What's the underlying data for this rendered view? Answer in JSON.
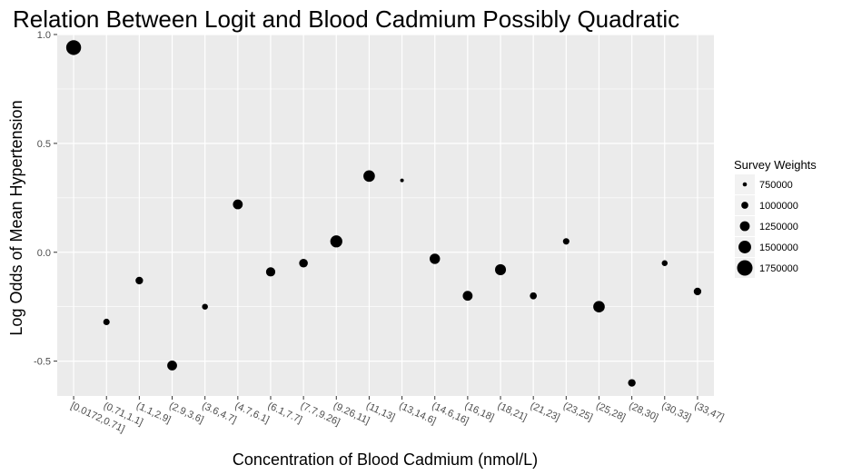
{
  "chart_data": {
    "type": "scatter",
    "title": "Relation Between Logit and Blood Cadmium Possibly Quadratic",
    "xlabel": "Concentration of Blood Cadmium (nmol/L)",
    "ylabel": "Log Odds of Mean Hypertension",
    "ylim": [
      -0.66,
      1.0
    ],
    "yticks": [
      "-0.5",
      "0.0",
      "0.5",
      "1.0"
    ],
    "ytick_values": [
      -0.5,
      0.0,
      0.5,
      1.0
    ],
    "grid": true,
    "legend_placement": "right",
    "legend": {
      "title": "Survey Weights",
      "labels": [
        "750000",
        "1000000",
        "1250000",
        "1500000",
        "1750000"
      ],
      "values": [
        750000,
        1000000,
        1250000,
        1500000,
        1750000
      ]
    },
    "categories": [
      "[0.0172,0.71]",
      "(0.71,1.1]",
      "(1.1,2.9]",
      "(2.9,3.6]",
      "(3.6,4.7]",
      "(4.7,6.1]",
      "(6.1,7.7]",
      "(7.7,9.26]",
      "(9.26,11]",
      "(11,13]",
      "(13,14.6]",
      "(14.6,16]",
      "(16,18]",
      "(18,21]",
      "(21,23]",
      "(23,25]",
      "(25,28]",
      "(28,30]",
      "(30,33]",
      "(33,47]"
    ],
    "y": [
      0.94,
      -0.32,
      -0.13,
      -0.52,
      -0.25,
      0.22,
      -0.09,
      -0.05,
      0.05,
      0.35,
      0.33,
      -0.03,
      -0.2,
      -0.08,
      -0.2,
      0.05,
      -0.25,
      -0.6,
      -0.05,
      -0.18
    ],
    "weights": [
      1700000,
      950000,
      1050000,
      1250000,
      900000,
      1250000,
      1200000,
      1150000,
      1450000,
      1400000,
      700000,
      1300000,
      1250000,
      1350000,
      1000000,
      950000,
      1400000,
      1050000,
      900000,
      1050000
    ],
    "point_color": "#000000",
    "panel_color": "#ebebeb",
    "grid_color": "#ffffff"
  }
}
